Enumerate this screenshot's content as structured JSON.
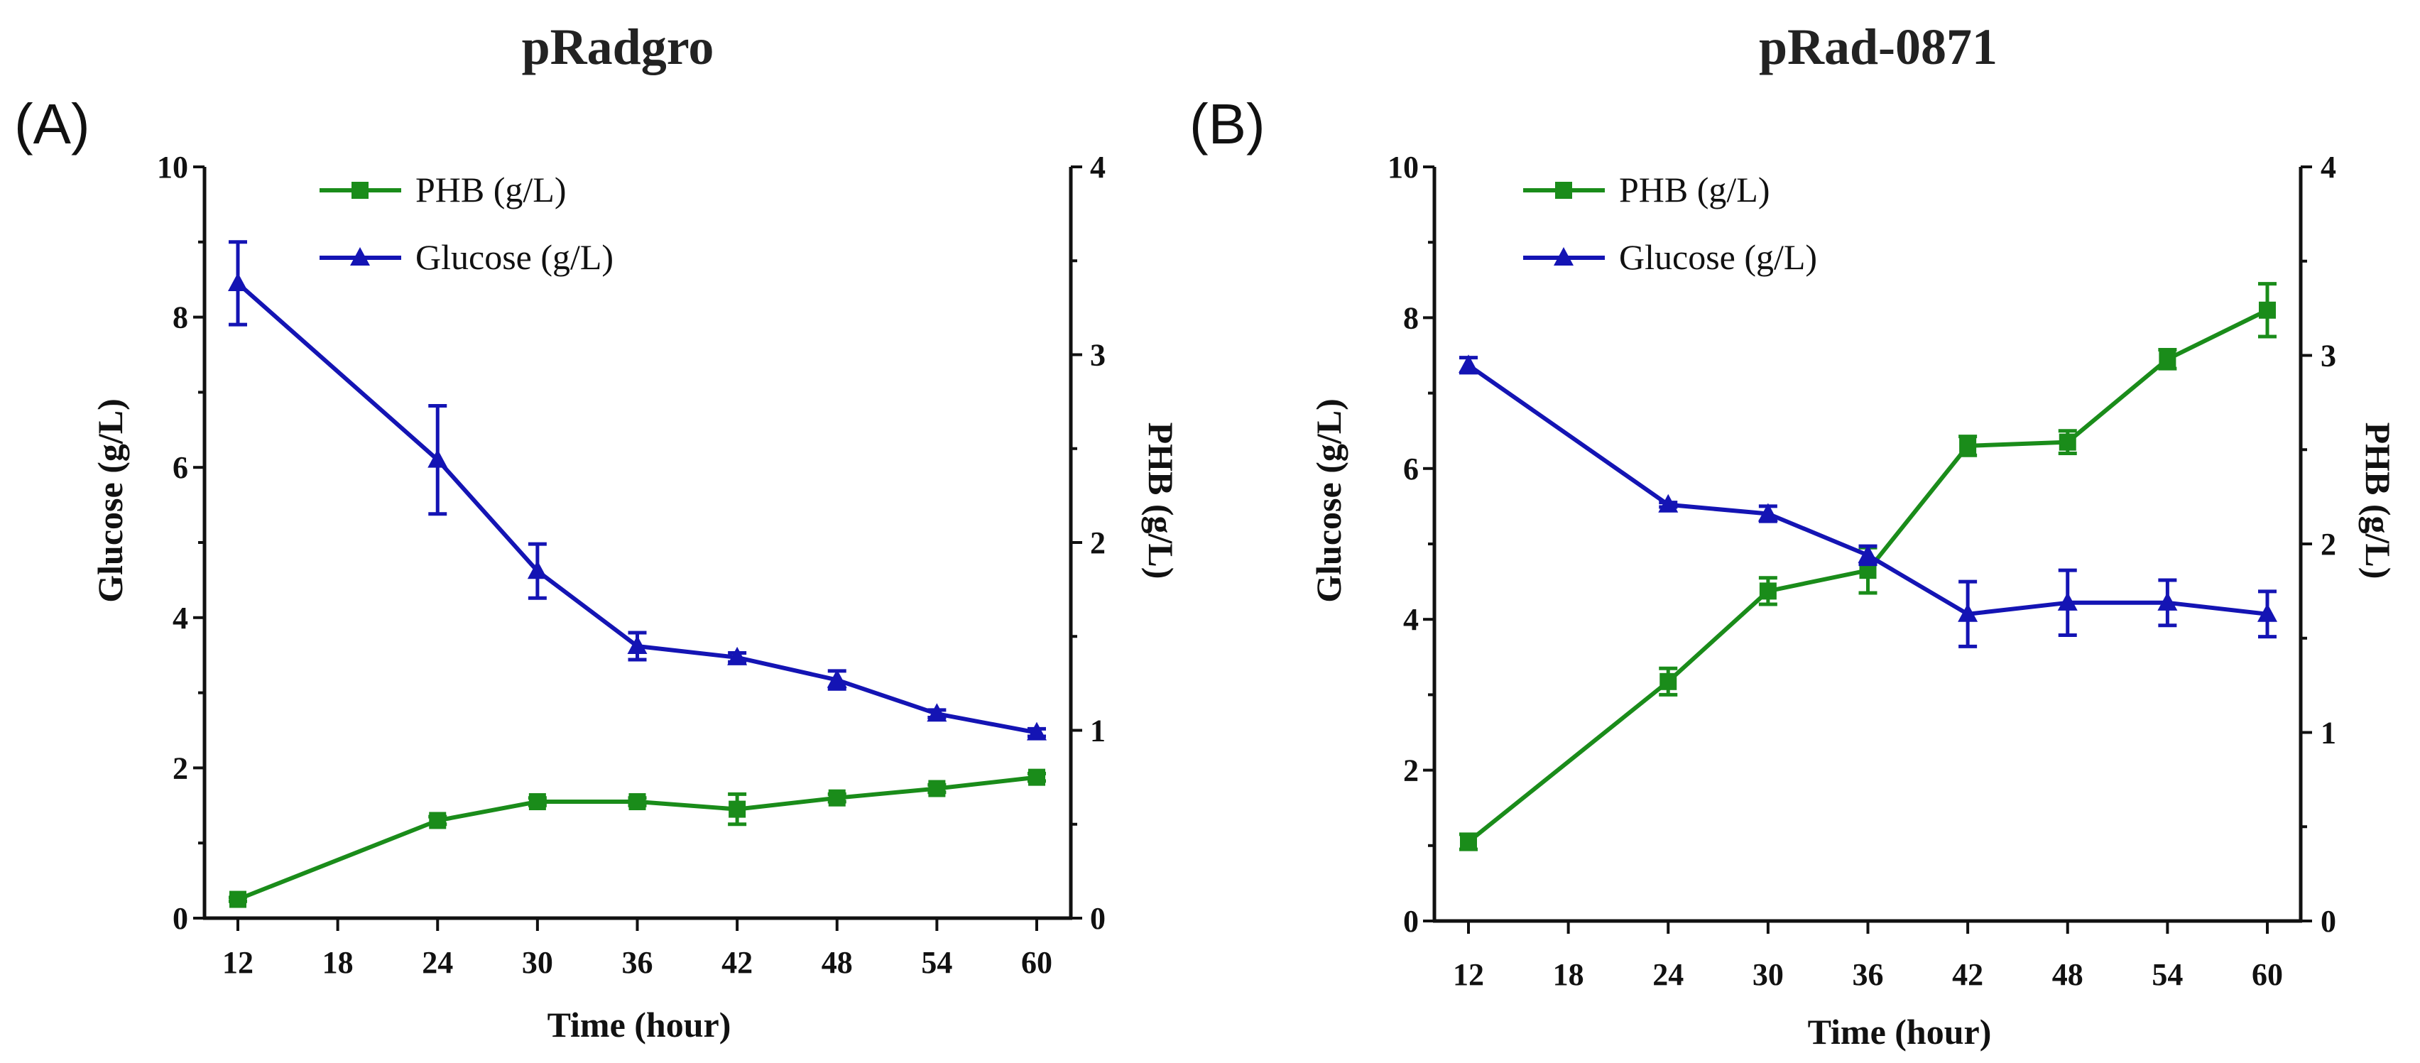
{
  "chart_data": [
    {
      "type": "line",
      "panel_label": "(A)",
      "title": "pRadgro",
      "xlabel": "Time (hour)",
      "ylabel": "Glucose (g/L)",
      "y2label": "PHB (g/L)",
      "x_ticks": [
        12,
        18,
        24,
        30,
        36,
        42,
        48,
        54,
        60
      ],
      "xlim": [
        12,
        60
      ],
      "ylim": [
        0,
        10
      ],
      "y_ticks": [
        0,
        2,
        4,
        6,
        8,
        10
      ],
      "y2lim": [
        0,
        4
      ],
      "y2_ticks": [
        0,
        1,
        2,
        3,
        4
      ],
      "legend_position": "top-center",
      "series": [
        {
          "name": "PHB (g/L)",
          "axis": "right",
          "color": "#1a8c1a",
          "marker": "square",
          "x": [
            12,
            24,
            30,
            36,
            42,
            48,
            54,
            60
          ],
          "values": [
            0.1,
            0.52,
            0.62,
            0.62,
            0.58,
            0.64,
            0.69,
            0.75
          ],
          "errors": [
            0.01,
            0.02,
            0.02,
            0.02,
            0.08,
            0.02,
            0.02,
            0.02
          ]
        },
        {
          "name": "Glucose (g/L)",
          "axis": "left",
          "color": "#1414b4",
          "marker": "triangle",
          "x": [
            12,
            24,
            30,
            36,
            42,
            48,
            54,
            60
          ],
          "values": [
            8.45,
            6.1,
            4.62,
            3.62,
            3.47,
            3.17,
            2.72,
            2.47
          ],
          "errors": [
            0.55,
            0.72,
            0.36,
            0.18,
            0.06,
            0.12,
            0.05,
            0.05
          ]
        }
      ]
    },
    {
      "type": "line",
      "panel_label": "(B)",
      "title": "pRad-0871",
      "xlabel": "Time (hour)",
      "ylabel": "Glucose (g/L)",
      "y2label": "PHB (g/L)",
      "x_ticks": [
        12,
        18,
        24,
        30,
        36,
        42,
        48,
        54,
        60
      ],
      "xlim": [
        12,
        60
      ],
      "ylim": [
        0,
        10
      ],
      "y_ticks": [
        0,
        2,
        4,
        6,
        8,
        10
      ],
      "y2lim": [
        0,
        4
      ],
      "y2_ticks": [
        0,
        1,
        2,
        3,
        4
      ],
      "legend_position": "top-center",
      "series": [
        {
          "name": "PHB (g/L)",
          "axis": "right",
          "color": "#1a8c1a",
          "marker": "square",
          "x": [
            12,
            24,
            30,
            36,
            42,
            48,
            54,
            60
          ],
          "values": [
            0.42,
            1.27,
            1.75,
            1.86,
            2.52,
            2.54,
            2.98,
            3.24
          ],
          "errors": [
            0.04,
            0.07,
            0.07,
            0.12,
            0.05,
            0.06,
            0.05,
            0.14
          ]
        },
        {
          "name": "Glucose (g/L)",
          "axis": "left",
          "color": "#1414b4",
          "marker": "triangle",
          "x": [
            12,
            24,
            30,
            36,
            42,
            48,
            54,
            60
          ],
          "values": [
            7.37,
            5.52,
            5.4,
            4.85,
            4.07,
            4.22,
            4.22,
            4.07
          ],
          "errors": [
            0.1,
            0.03,
            0.1,
            0.12,
            0.43,
            0.43,
            0.3,
            0.3
          ]
        }
      ]
    }
  ]
}
